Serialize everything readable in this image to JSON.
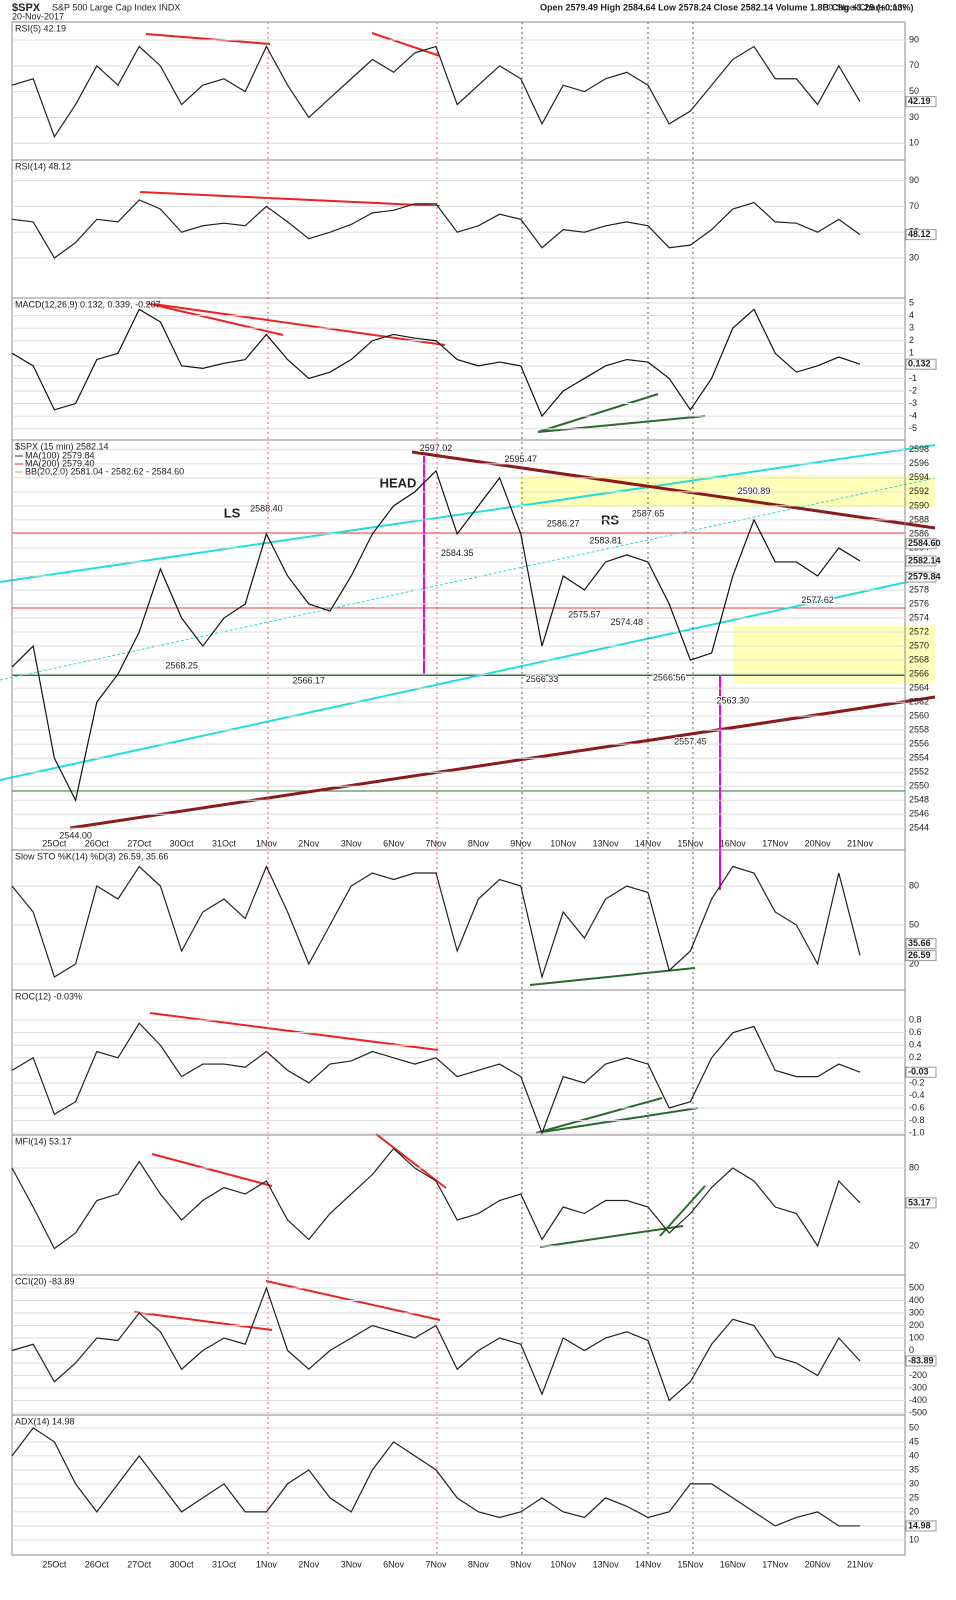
{
  "header": {
    "symbol": "$SPX",
    "name": "S&P 500 Large Cap Index INDX",
    "date": "20-Nov-2017",
    "quote": "Open 2579.49  High 2584.64  Low 2578.24  Close 2582.14  Volume 1.8B  Chg +3.29 (+0.13%)",
    "credit": "© StockCharts.com"
  },
  "annotations": [
    "LS",
    "HEAD",
    "RS"
  ],
  "chart_data": [
    {
      "type": "line",
      "title": "RSI(5) 42.19",
      "ylim": [
        -3,
        104
      ],
      "yticks": [
        10,
        30,
        50,
        70,
        90
      ],
      "color": "#222",
      "last_values": [
        42.19
      ],
      "values": [
        55,
        60,
        15,
        40,
        70,
        55,
        85,
        70,
        40,
        55,
        60,
        50,
        85,
        55,
        30,
        45,
        60,
        75,
        65,
        80,
        85,
        40,
        55,
        70,
        60,
        25,
        55,
        50,
        60,
        65,
        55,
        25,
        35,
        55,
        75,
        85,
        60,
        60,
        40,
        70,
        42.19
      ]
    },
    {
      "type": "line",
      "title": "RSI(14) 48.12",
      "ylim": [
        -1,
        106
      ],
      "yticks": [
        30,
        50,
        70,
        90
      ],
      "color": "#222",
      "last_values": [
        48.12
      ],
      "values": [
        60,
        58,
        30,
        42,
        60,
        58,
        75,
        68,
        50,
        55,
        57,
        55,
        70,
        58,
        45,
        50,
        56,
        65,
        67,
        72,
        72,
        50,
        55,
        64,
        60,
        38,
        52,
        50,
        55,
        58,
        55,
        38,
        40,
        52,
        68,
        73,
        58,
        57,
        50,
        60,
        48.12
      ]
    },
    {
      "type": "line",
      "title": "MACD(12,26,9) 0.132, 0.339, -0.207",
      "ylim": [
        -5.9,
        5.4
      ],
      "yticks": [
        -5,
        -4,
        -3,
        -2,
        -1,
        0,
        1,
        2,
        3,
        4,
        5
      ],
      "color": "#111",
      "last_values": [
        0.132
      ],
      "values": [
        1,
        0,
        -3.5,
        -3,
        0.5,
        1,
        4.5,
        3.5,
        0,
        -0.2,
        0.2,
        0.5,
        2.5,
        0.5,
        -1,
        -0.5,
        0.5,
        2,
        2.5,
        2.2,
        2,
        0.5,
        0,
        0.3,
        0,
        -4,
        -2,
        -1,
        0,
        0.5,
        0.3,
        -1,
        -3.5,
        -1,
        3,
        4.5,
        1,
        -0.5,
        0,
        0.7,
        0.132
      ]
    },
    {
      "type": "line",
      "title": "$SPX (15 min) 2582.14",
      "legend": [
        {
          "name": "MA(100) 2579.84",
          "color": "#333"
        },
        {
          "name": "MA(200) 2579.40",
          "color": "#d33"
        },
        {
          "name": "BB(20,2.0) 2581.04 - 2582.62 - 2584.60",
          "color": "#d98"
        }
      ],
      "ylim": [
        2540.9,
        2599.4
      ],
      "yticks": [
        2544,
        2546,
        2548,
        2550,
        2552,
        2554,
        2556,
        2558,
        2560,
        2562,
        2564,
        2566,
        2568,
        2570,
        2572,
        2574,
        2576,
        2578,
        2580,
        2582,
        2584,
        2586,
        2588,
        2590,
        2592,
        2594,
        2596,
        2598
      ],
      "color": "#111",
      "last_values": [
        {
          "value": 2584.6,
          "label": "2584.60"
        },
        2582.14,
        2579.84
      ],
      "categories": [
        null,
        null,
        "25Oct",
        null,
        "26Oct",
        null,
        "27Oct",
        null,
        "30Oct",
        null,
        "31Oct",
        null,
        "1Nov",
        null,
        "2Nov",
        null,
        "3Nov",
        null,
        "6Nov",
        null,
        "7Nov",
        null,
        "8Nov",
        null,
        "9Nov",
        null,
        "10Nov",
        null,
        "13Nov",
        null,
        "14Nov",
        null,
        "15Nov",
        null,
        "16Nov",
        null,
        "17Nov",
        null,
        "20Nov",
        null,
        "21Nov"
      ],
      "values": [
        2567,
        2570,
        2554,
        2548,
        2562,
        2566,
        2572,
        2581,
        2574,
        2570,
        2574,
        2576,
        2586,
        2580,
        2576,
        2575,
        2580,
        2586,
        2590,
        2592,
        2595,
        2586,
        2590,
        2594,
        2586,
        2570,
        2580,
        2578,
        2582,
        2583,
        2582,
        2576,
        2568,
        2569,
        2580,
        2588,
        2582,
        2582,
        2580,
        2584,
        2582.14
      ],
      "point_labels": [
        {
          "i": 3,
          "value": 2544,
          "label": "2544.00"
        },
        {
          "i": 8,
          "value": 2568.25
        },
        {
          "i": 12,
          "value": 2588.4,
          "label": "2588.40"
        },
        {
          "i": 14,
          "value": 2566.17
        },
        {
          "i": 20,
          "value": 2597.02
        },
        {
          "i": 21,
          "value": 2584.35
        },
        {
          "i": 24,
          "value": 2595.47
        },
        {
          "i": 25,
          "value": 2566.33
        },
        {
          "i": 26,
          "value": 2586.27
        },
        {
          "i": 27,
          "value": 2575.57
        },
        {
          "i": 28,
          "value": 2583.81
        },
        {
          "i": 29,
          "value": 2574.48
        },
        {
          "i": 30,
          "value": 2587.65
        },
        {
          "i": 31,
          "value": 2566.56
        },
        {
          "i": 32,
          "value": 2557.45
        },
        {
          "i": 34,
          "value": 2563.3,
          "label": "2563.30"
        },
        {
          "i": 35,
          "value": 2590.89
        },
        {
          "i": 38,
          "value": 2577.62
        }
      ]
    },
    {
      "type": "line",
      "title": "Slow STO %K(14) %D(3) 26.59, 35.66",
      "ylim": [
        0,
        107.7
      ],
      "yticks": [
        20,
        50,
        80
      ],
      "color": "#222",
      "last_values": [
        35.66,
        26.59
      ],
      "values": [
        80,
        60,
        10,
        20,
        80,
        70,
        95,
        80,
        30,
        60,
        70,
        55,
        95,
        60,
        20,
        50,
        80,
        90,
        85,
        90,
        90,
        30,
        70,
        85,
        80,
        10,
        60,
        40,
        70,
        80,
        75,
        15,
        30,
        70,
        95,
        90,
        60,
        50,
        20,
        90,
        26.59
      ]
    },
    {
      "type": "line",
      "title": "ROC(12) -0.03%",
      "ylim": [
        -1.03,
        1.28
      ],
      "yticks": [
        0.8,
        0.6,
        0.4,
        0.2,
        -0.2,
        -0.4,
        -0.6,
        -0.8,
        {
          "value": -1,
          "label": "-1.0"
        }
      ],
      "color": "#222",
      "last_values": [
        -0.03
      ],
      "values": [
        0,
        0.2,
        -0.7,
        -0.5,
        0.3,
        0.2,
        0.75,
        0.4,
        -0.1,
        0.1,
        0.1,
        0.05,
        0.3,
        0,
        -0.2,
        0.1,
        0.15,
        0.3,
        0.2,
        0.1,
        0.2,
        -0.1,
        0,
        0.1,
        -0.1,
        -1,
        -0.1,
        -0.2,
        0.1,
        0.2,
        0.1,
        -0.6,
        -0.5,
        0.2,
        0.6,
        0.7,
        0,
        -0.1,
        -0.1,
        0.1,
        -0.03
      ]
    },
    {
      "type": "line",
      "title": "MFI(14) 53.17",
      "ylim": [
        -2.3,
        105.4
      ],
      "yticks": [
        20,
        80
      ],
      "color": "#222",
      "last_values": [
        53.17
      ],
      "values": [
        80,
        50,
        18,
        30,
        55,
        60,
        85,
        60,
        40,
        55,
        65,
        60,
        70,
        40,
        25,
        45,
        60,
        75,
        95,
        80,
        70,
        40,
        45,
        55,
        60,
        25,
        50,
        45,
        55,
        55,
        50,
        30,
        45,
        65,
        80,
        70,
        50,
        45,
        20,
        70,
        53.17
      ]
    },
    {
      "type": "line",
      "title": "CCI(20) -83.89",
      "ylim": [
        -516,
        604
      ],
      "yticks": [
        -500,
        -400,
        -300,
        -200,
        -100,
        0,
        100,
        200,
        300,
        400,
        500
      ],
      "color": "#222",
      "last_values": [
        -83.89
      ],
      "values": [
        0,
        50,
        -250,
        -100,
        100,
        80,
        300,
        150,
        -150,
        0,
        100,
        50,
        500,
        0,
        -150,
        0,
        100,
        200,
        150,
        100,
        200,
        -150,
        0,
        100,
        50,
        -350,
        100,
        0,
        100,
        150,
        80,
        -400,
        -250,
        50,
        250,
        200,
        -50,
        -100,
        -200,
        100,
        -83.89
      ]
    },
    {
      "type": "line",
      "title": "ADX(14) 14.98",
      "ylim": [
        4.6,
        54.6
      ],
      "yticks": [
        10,
        15,
        20,
        25,
        30,
        35,
        40,
        45,
        50
      ],
      "color": "#222",
      "last_values": [
        14.98
      ],
      "categories": [
        null,
        null,
        "25Oct",
        null,
        "26Oct",
        null,
        "27Oct",
        null,
        "30Oct",
        null,
        "31Oct",
        null,
        "1Nov",
        null,
        "2Nov",
        null,
        "3Nov",
        null,
        "6Nov",
        null,
        "7Nov",
        null,
        "8Nov",
        null,
        "9Nov",
        null,
        "10Nov",
        null,
        "13Nov",
        null,
        "14Nov",
        null,
        "15Nov",
        null,
        "16Nov",
        null,
        "17Nov",
        null,
        "20Nov",
        null,
        "21Nov"
      ],
      "values": [
        40,
        50,
        45,
        30,
        20,
        30,
        40,
        30,
        20,
        25,
        30,
        20,
        20,
        30,
        35,
        25,
        20,
        35,
        45,
        40,
        35,
        25,
        20,
        18,
        20,
        25,
        20,
        18,
        25,
        22,
        18,
        20,
        30,
        30,
        25,
        20,
        15,
        18,
        20,
        15,
        14.98
      ]
    }
  ]
}
